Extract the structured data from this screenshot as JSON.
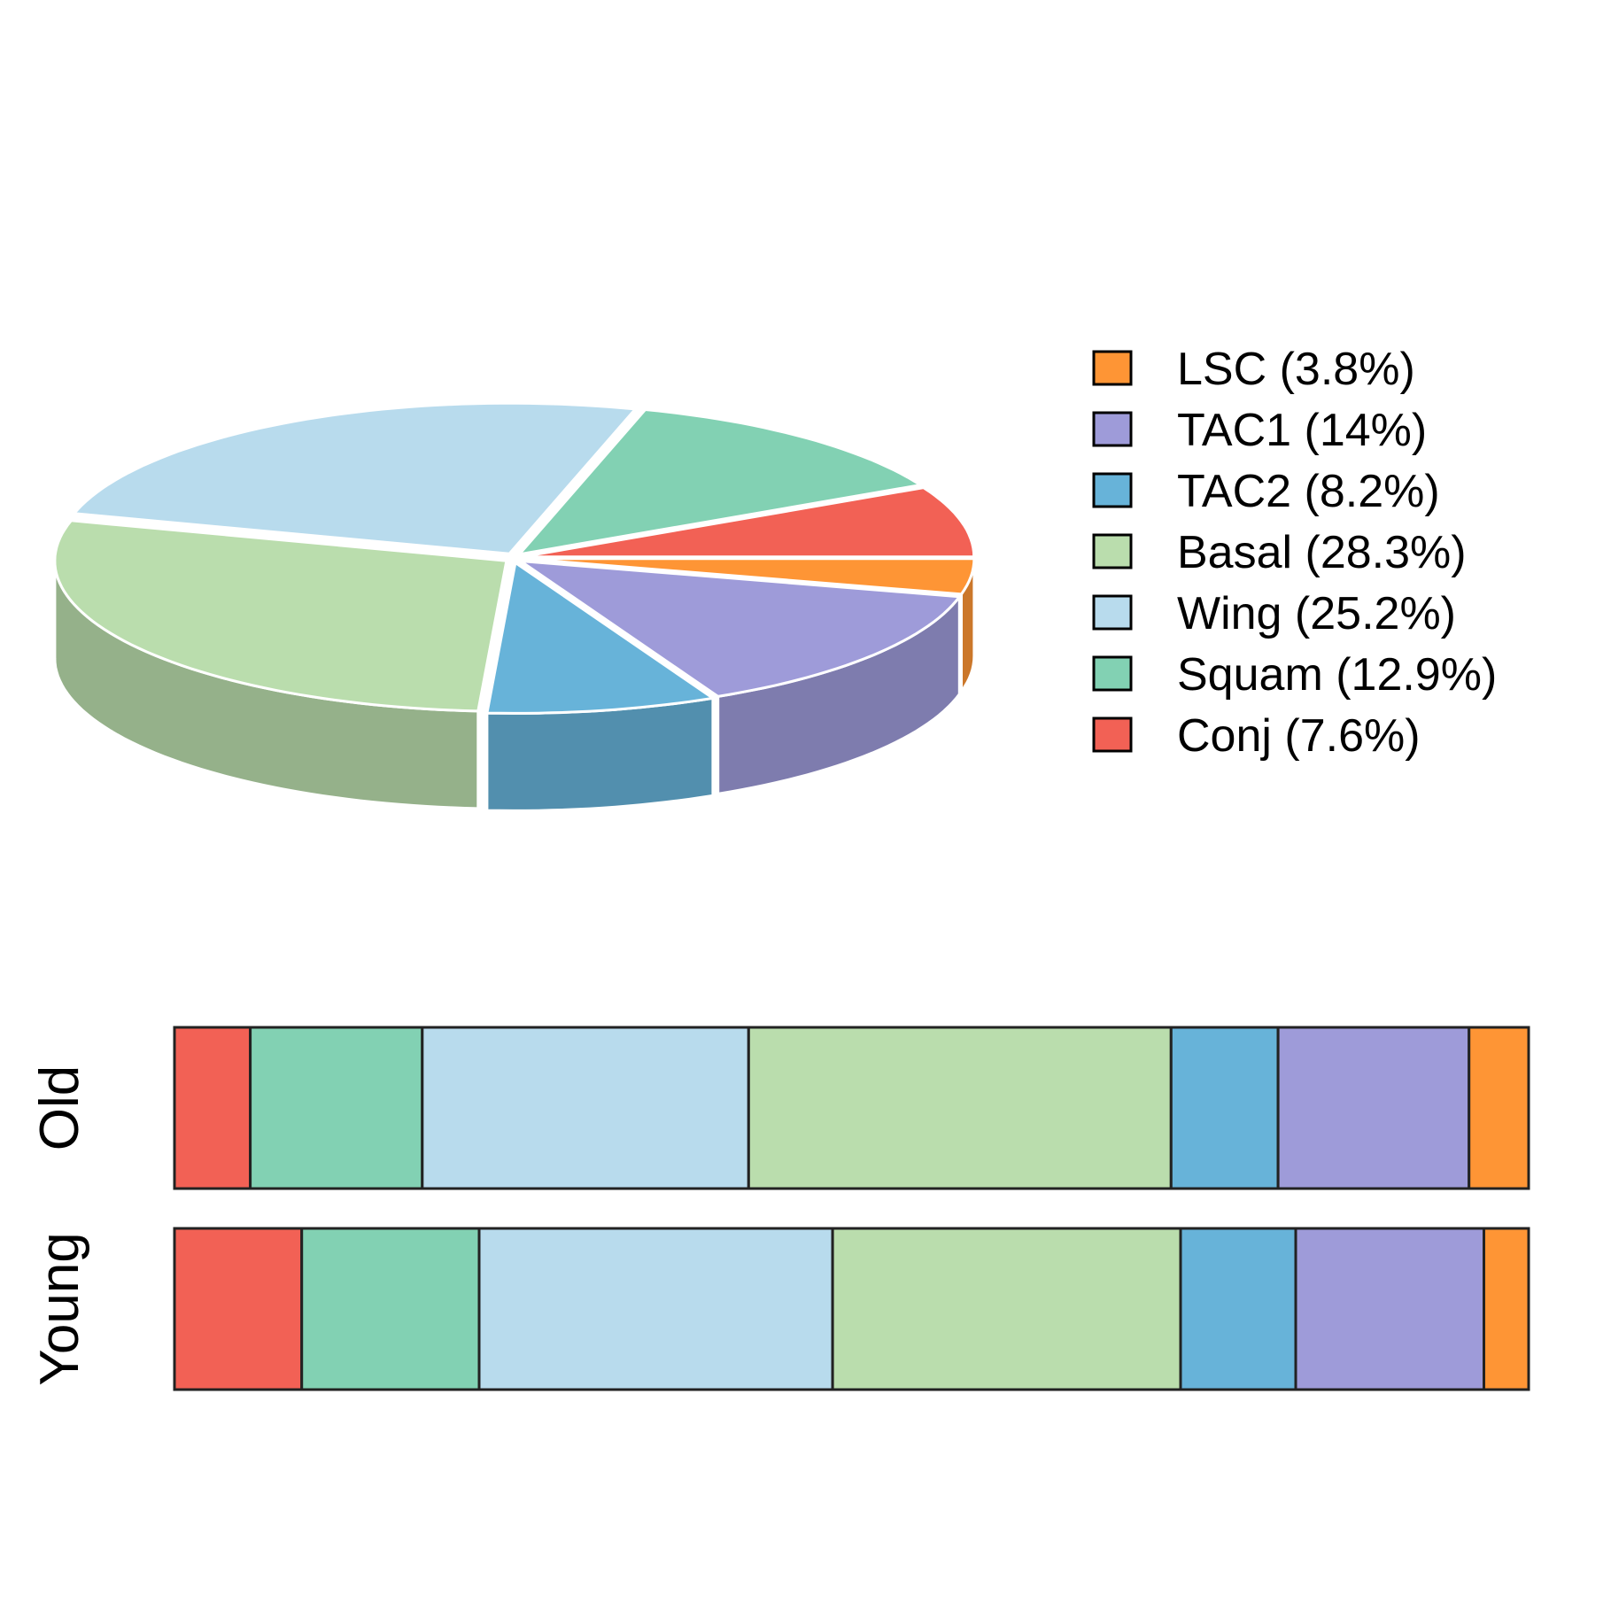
{
  "chart_data": [
    {
      "type": "pie",
      "style": "3d-exploded",
      "categories": [
        "LSC",
        "TAC1",
        "TAC2",
        "Basal",
        "Wing",
        "Squam",
        "Conj"
      ],
      "values": [
        3.8,
        14,
        8.2,
        28.3,
        25.2,
        12.9,
        7.6
      ],
      "colors": [
        "#FE9535",
        "#9E9BD9",
        "#67B3D9",
        "#BADDAD",
        "#B8DBED",
        "#82D1B3",
        "#F26155"
      ],
      "legend": {
        "position": "right",
        "entries": [
          "LSC (3.8%)",
          "TAC1 (14%)",
          "TAC2 (8.2%)",
          "Basal (28.3%)",
          "Wing (25.2%)",
          "Squam (12.9%)",
          "Conj (7.6%)"
        ]
      }
    },
    {
      "type": "bar",
      "orientation": "horizontal",
      "stacked": true,
      "normalized": true,
      "categories": [
        "Old",
        "Young"
      ],
      "series": [
        {
          "name": "Conj",
          "color": "#F26155",
          "values": [
            5.6,
            9.4
          ]
        },
        {
          "name": "Squam",
          "color": "#82D1B3",
          "values": [
            12.7,
            13.1
          ]
        },
        {
          "name": "Wing",
          "color": "#B8DBED",
          "values": [
            24.1,
            26.1
          ]
        },
        {
          "name": "Basal",
          "color": "#BADDAD",
          "values": [
            31.2,
            25.7
          ]
        },
        {
          "name": "TAC2",
          "color": "#67B3D9",
          "values": [
            7.9,
            8.5
          ]
        },
        {
          "name": "TAC1",
          "color": "#9E9BD9",
          "values": [
            14.1,
            13.9
          ]
        },
        {
          "name": "LSC",
          "color": "#FE9535",
          "values": [
            4.4,
            3.3
          ]
        }
      ],
      "xlim": [
        0,
        100
      ]
    }
  ]
}
